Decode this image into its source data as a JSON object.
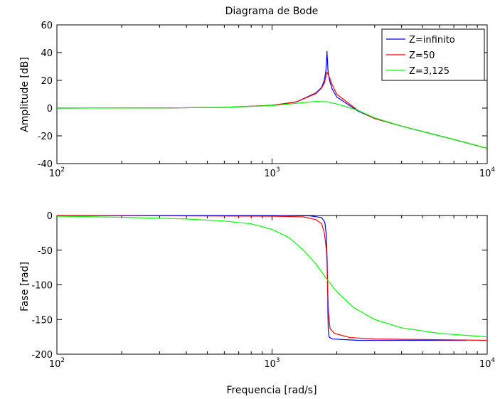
{
  "chart_data": [
    {
      "type": "line",
      "title": "Diagrama de Bode",
      "xlabel": "",
      "ylabel": "Amplitude [dB]",
      "xscale": "log",
      "xlim": [
        100,
        10000
      ],
      "ylim": [
        -40,
        60
      ],
      "yticks": [
        -40,
        -20,
        0,
        20,
        40,
        60
      ],
      "xticks": [
        {
          "base": "10",
          "exp": "2",
          "value": 100
        },
        {
          "base": "10",
          "exp": "3",
          "value": 1000
        },
        {
          "base": "10",
          "exp": "4",
          "value": 10000
        }
      ],
      "legend": "top-right",
      "series": [
        {
          "name": "Z=infinito",
          "color": "#0000ff",
          "x": [
            100,
            300,
            600,
            1000,
            1300,
            1600,
            1700,
            1750,
            1780,
            1800,
            1820,
            1850,
            1900,
            2000,
            2500,
            3000,
            4000,
            6000,
            8000,
            10000
          ],
          "y": [
            0,
            0.1,
            0.5,
            2,
            4.5,
            11,
            15,
            20,
            27,
            41,
            27,
            20,
            14,
            8,
            -2,
            -7.5,
            -13,
            -20,
            -25,
            -29
          ]
        },
        {
          "name": "Z=50",
          "color": "#ff0000",
          "x": [
            100,
            300,
            600,
            1000,
            1300,
            1600,
            1700,
            1750,
            1800,
            1850,
            1900,
            2000,
            2500,
            3000,
            4000,
            6000,
            8000,
            10000
          ],
          "y": [
            0,
            0.1,
            0.5,
            2,
            4.5,
            10.5,
            14.5,
            18,
            26,
            22,
            17,
            10,
            -1.5,
            -7.5,
            -13,
            -20,
            -25,
            -29
          ]
        },
        {
          "name": "Z=3,125",
          "color": "#00ff00",
          "x": [
            100,
            300,
            600,
            1000,
            1300,
            1600,
            1800,
            2000,
            2500,
            3000,
            4000,
            6000,
            8000,
            10000
          ],
          "y": [
            0,
            0.1,
            0.5,
            1.8,
            3.5,
            4.8,
            4.5,
            3,
            -1.5,
            -7,
            -13,
            -20,
            -25,
            -29
          ]
        }
      ]
    },
    {
      "type": "line",
      "title": "",
      "xlabel": "Frequencia [rad/s]",
      "ylabel": "Fase [rad]",
      "xscale": "log",
      "xlim": [
        100,
        10000
      ],
      "ylim": [
        -200,
        0
      ],
      "yticks": [
        -200,
        -150,
        -100,
        -50,
        0
      ],
      "xticks": [
        {
          "base": "10",
          "exp": "2",
          "value": 100
        },
        {
          "base": "10",
          "exp": "3",
          "value": 1000
        },
        {
          "base": "10",
          "exp": "4",
          "value": 10000
        }
      ],
      "series": [
        {
          "name": "Z=infinito",
          "color": "#0000ff",
          "x": [
            100,
            1000,
            1500,
            1700,
            1760,
            1790,
            1805,
            1812,
            1818,
            1825,
            1840,
            1900,
            2500,
            8000
          ],
          "y": [
            0,
            0,
            -0.5,
            -3,
            -10,
            -30,
            -70,
            -100,
            -140,
            -165,
            -175,
            -178,
            -180,
            -180
          ]
        },
        {
          "name": "Z=50",
          "color": "#ff0000",
          "x": [
            100,
            1000,
            1400,
            1600,
            1700,
            1750,
            1790,
            1805,
            1815,
            1830,
            1860,
            1950,
            2300,
            3000,
            10000
          ],
          "y": [
            0,
            -1,
            -2,
            -6,
            -12,
            -25,
            -50,
            -80,
            -110,
            -140,
            -163,
            -170,
            -176,
            -178,
            -180
          ]
        },
        {
          "name": "Z=3,125",
          "color": "#00ff00",
          "x": [
            100,
            200,
            400,
            600,
            800,
            1000,
            1200,
            1400,
            1600,
            1800,
            2000,
            2400,
            3000,
            4000,
            6000,
            10000
          ],
          "y": [
            -1,
            -2.5,
            -5,
            -8,
            -12,
            -20,
            -32,
            -50,
            -70,
            -92,
            -110,
            -133,
            -150,
            -162,
            -170,
            -175
          ]
        }
      ]
    }
  ]
}
